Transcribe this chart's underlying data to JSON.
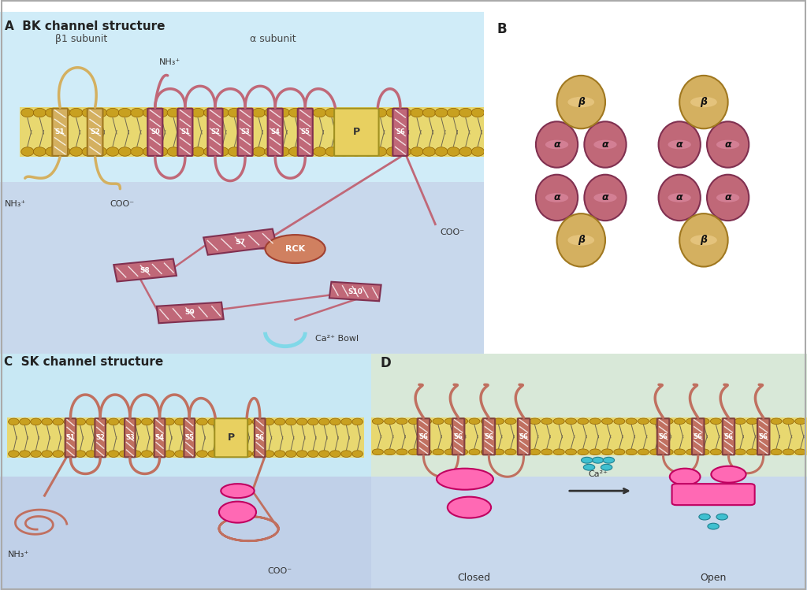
{
  "panel_A_label": "A  BK channel structure",
  "panel_B_label": "B",
  "panel_C_label": "C  SK channel structure",
  "panel_D_label": "D",
  "bk_alpha_color": "#c06878",
  "bk_alpha_stroke": "#803050",
  "bk_beta_color": "#d4b060",
  "bk_beta_stroke": "#a07820",
  "sk_color": "#c07060",
  "sk_stroke": "#804040",
  "rck_color": "#d08060",
  "rck_stroke": "#a04030",
  "ca_bowl_color": "#80d8e8",
  "calmodulin_color": "#ff69b4",
  "calmodulin_stroke": "#c00060",
  "ca_ion_color": "#40c0d0",
  "ca_ion_stroke": "#208090",
  "mem_bead_color": "#c8a020",
  "mem_bead_stroke": "#906000",
  "mem_fill_color": "#e8d870",
  "mem_tail_color": "#706850",
  "p_fill_color": "#e8d060",
  "p_stroke_color": "#a09020",
  "extracell_color_A": "#d0ecf8",
  "intracell_color_A": "#c8d8ec",
  "extracell_color_C": "#c8e8f4",
  "intracell_color_C": "#c0d0e8",
  "extracell_color_D": "#d8e8d8",
  "intracell_color_D": "#c8d8ec",
  "panel_B_bg": "#ffffff",
  "label_color": "#333333",
  "text_color_dark": "#222222",
  "border_color": "#555555"
}
